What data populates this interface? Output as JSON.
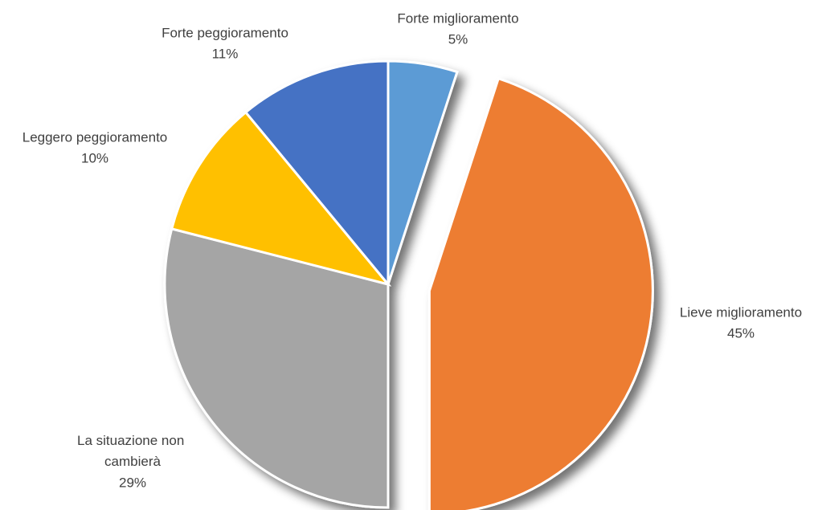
{
  "chart_data": {
    "type": "pie",
    "categories": [
      "Forte miglioramento",
      "Lieve miglioramento",
      "La situazione non cambierà",
      "Leggero peggioramento",
      "Forte peggioramento"
    ],
    "values": [
      5,
      45,
      29,
      10,
      11
    ],
    "value_labels": [
      "5%",
      "45%",
      "29%",
      "10%",
      "11%"
    ],
    "colors": [
      "#5b9bd5",
      "#ed7d31",
      "#a5a5a5",
      "#ffc000",
      "#4472c4"
    ],
    "exploded": [
      1
    ]
  }
}
